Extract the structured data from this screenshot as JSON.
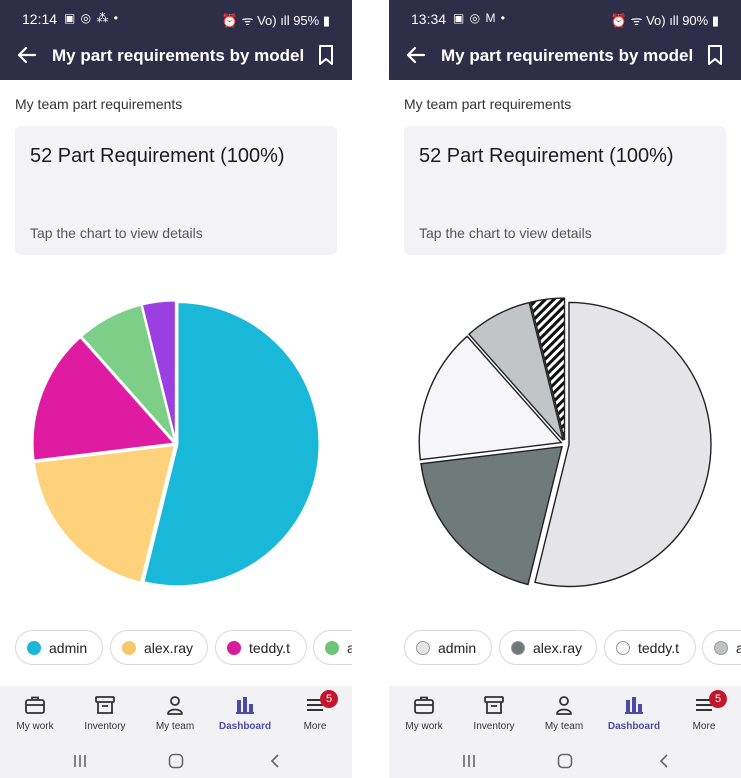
{
  "screens": [
    {
      "status": {
        "time": "12:14",
        "icons": "▣ ◎ ⁂ •",
        "right": "⏰ ᯤ Vo) ıll 95% ▮"
      },
      "app_bar": {
        "title": "My part requirements by model"
      },
      "section_label": "My team part requirements",
      "card": {
        "title": "52 Part Requirement (100%)",
        "hint": "Tap the chart to view details"
      },
      "legend": [
        {
          "label": "admin",
          "color": "#1ab7d8",
          "checked": true
        },
        {
          "label": "alex.ray",
          "color": "#f5c96a",
          "checked": true
        },
        {
          "label": "teddy.t",
          "color": "#d81b9b",
          "checked": true
        },
        {
          "label": "a",
          "color": "#6ec57a",
          "checked": true
        }
      ],
      "nav": [
        {
          "label": "My work",
          "icon": "briefcase-icon"
        },
        {
          "label": "Inventory",
          "icon": "archive-box-icon"
        },
        {
          "label": "My team",
          "icon": "person-icon"
        },
        {
          "label": "Dashboard",
          "icon": "bar-chart-icon",
          "active": true
        },
        {
          "label": "More",
          "icon": "menu-icon",
          "badge": "5"
        }
      ]
    },
    {
      "status": {
        "time": "13:34",
        "icons": "▣ ◎ M •",
        "right": "⏰ ᯤ Vo) ıll 90% ▮"
      },
      "app_bar": {
        "title": "My part requirements by model"
      },
      "section_label": "My team part requirements",
      "card": {
        "title": "52 Part Requirement (100%)",
        "hint": "Tap the chart to view details"
      },
      "legend": [
        {
          "label": "admin",
          "color": "#e6e6e8",
          "checked": false
        },
        {
          "label": "alex.ray",
          "color": "#6f7a78",
          "checked": false
        },
        {
          "label": "teddy.t",
          "color": "#f6f6f8",
          "checked": false
        },
        {
          "label": "a",
          "color": "#bfc3c3",
          "checked": false
        }
      ],
      "nav": [
        {
          "label": "My work",
          "icon": "briefcase-icon"
        },
        {
          "label": "Inventory",
          "icon": "archive-box-icon"
        },
        {
          "label": "My team",
          "icon": "person-icon"
        },
        {
          "label": "Dashboard",
          "icon": "bar-chart-icon",
          "active": true
        },
        {
          "label": "More",
          "icon": "menu-icon",
          "badge": "5"
        }
      ]
    }
  ],
  "chart_data": [
    {
      "type": "pie",
      "slices": [
        {
          "value": 28,
          "color": "#19b8d9"
        },
        {
          "value": 10,
          "color": "#fdd27a"
        },
        {
          "value": 8,
          "color": "#df1ba2"
        },
        {
          "value": 4,
          "color": "#7dcf87"
        },
        {
          "value": 2,
          "color": "#9b3fe0"
        }
      ]
    },
    {
      "type": "pie",
      "slices": [
        {
          "value": 28,
          "color": "#e5e5e7"
        },
        {
          "value": 10,
          "color": "#6f7b79"
        },
        {
          "value": 8,
          "color": "#f6f6f8"
        },
        {
          "value": 4,
          "color": "#c1c5c5"
        },
        {
          "value": 2,
          "color": "hatched"
        }
      ]
    }
  ]
}
